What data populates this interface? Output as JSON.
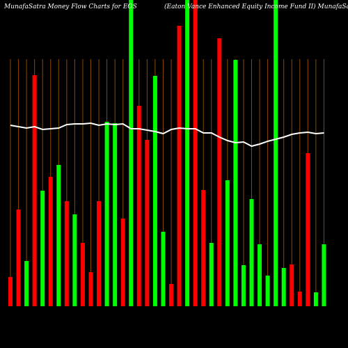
{
  "chart_data": {
    "type": "bar",
    "title": "MunafaSatra  Money Flow  Charts for EOS",
    "subtitle": "(Eaton Vance   Enhanced Equity Income   Fund II) MunafaSatra.com",
    "ylim": [
      0,
      440
    ],
    "background": "#000000",
    "grid_color": "#8a4a00",
    "bars": {
      "values": [
        42,
        139,
        65,
        332,
        166,
        186,
        203,
        151,
        132,
        91,
        49,
        151,
        265,
        263,
        126,
        440,
        288,
        239,
        331,
        107,
        32,
        403,
        440,
        440,
        167,
        91,
        385,
        181,
        354,
        59,
        154,
        89,
        44,
        440,
        55,
        60,
        21,
        220,
        20,
        89
      ],
      "colors": [
        "#ff0000",
        "#ff0000",
        "#00ff00",
        "#ff0000",
        "#00ff00",
        "#ff0000",
        "#00ff00",
        "#ff0000",
        "#00ff00",
        "#ff0000",
        "#ff0000",
        "#ff0000",
        "#00ff00",
        "#00ff00",
        "#ff0000",
        "#00ff00",
        "#ff0000",
        "#ff0000",
        "#00ff00",
        "#00ff00",
        "#ff0000",
        "#ff0000",
        "#00ff00",
        "#ff0000",
        "#ff0000",
        "#00ff00",
        "#ff0000",
        "#00ff00",
        "#00ff00",
        "#00ff00",
        "#00ff00",
        "#00ff00",
        "#00ff00",
        "#00ff00",
        "#00ff00",
        "#ff0000",
        "#ff0000",
        "#ff0000",
        "#00ff00",
        "#00ff00"
      ]
    },
    "line": {
      "color": "#ffffff",
      "values": [
        260,
        258,
        256,
        258,
        254,
        255,
        256,
        261,
        262,
        262,
        263,
        260,
        262,
        261,
        262,
        255,
        255,
        253,
        251,
        248,
        254,
        256,
        255,
        255,
        249,
        249,
        243,
        238,
        235,
        236,
        230,
        233,
        237,
        240,
        243,
        247,
        249,
        250,
        248,
        249
      ]
    }
  }
}
